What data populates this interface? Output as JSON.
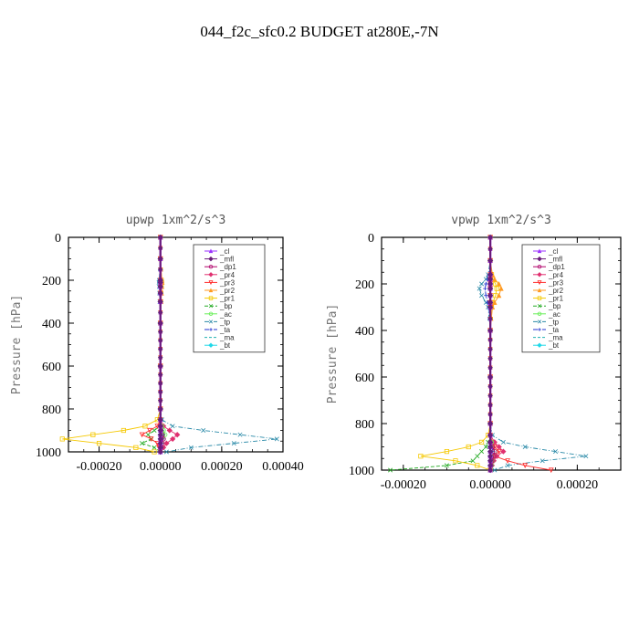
{
  "title": "044_f2c_sfc0.2  BUDGET at280E,-7N",
  "colors": {
    "_cl": "#9b30ff",
    "_mfl": "#6a1b7a",
    "_dp1": "#b0006a",
    "_pr4": "#e03070",
    "_pr3": "#ff2a2a",
    "_pr2": "#ff9a20",
    "_pr1": "#f5c800",
    "_bp": "#22aa22",
    "_ac": "#66ee55",
    "_tp": "#2a8aa8",
    "_ta": "#2030d0",
    "_ma": "#20b0b0",
    "_bt": "#20d8e8"
  },
  "chart_data": [
    {
      "type": "line",
      "title": "upwp   1xm^2/s^3",
      "ylabel": "Pressure [hPa]",
      "xlim": [
        -0.0003,
        0.0004
      ],
      "ylim": [
        1000,
        0
      ],
      "xticks": [
        "-0.00020",
        "0.00000",
        "0.00020",
        "0.00040"
      ],
      "xtick_values": [
        -0.0002,
        0,
        0.0002,
        0.0004
      ],
      "yticks": [
        "0",
        "200",
        "400",
        "600",
        "800",
        "1000"
      ],
      "ytick_values": [
        0,
        200,
        400,
        600,
        800,
        1000
      ],
      "legend": [
        "_cl",
        "_mfl",
        "_dp1",
        "_pr4",
        "_pr3",
        "_pr2",
        "_pr1",
        "_bp",
        "_ac",
        "_tp",
        "_ta",
        "_ma",
        "_bt"
      ],
      "legend_position": "top-right",
      "y": [
        0,
        100,
        200,
        210,
        230,
        260,
        300,
        400,
        600,
        800,
        850,
        880,
        900,
        920,
        940,
        960,
        980,
        1000
      ],
      "series": [
        {
          "name": "_cl",
          "x": [
            0,
            0,
            0,
            0,
            0,
            0,
            0,
            0,
            0,
            0,
            0,
            0,
            0,
            0,
            0,
            0,
            0,
            0
          ]
        },
        {
          "name": "_mfl",
          "x": [
            0,
            0,
            0,
            0,
            0,
            0,
            0,
            0,
            0,
            0,
            0,
            0,
            0,
            0,
            0,
            0,
            0,
            0
          ]
        },
        {
          "name": "_dp1",
          "x": [
            0,
            0,
            0,
            0,
            0,
            0,
            0,
            0,
            0,
            0,
            0,
            0,
            2e-06,
            6e-06,
            1e-05,
            5e-06,
            3e-06,
            0
          ]
        },
        {
          "name": "_pr4",
          "x": [
            0,
            0,
            0,
            0,
            0,
            0,
            0,
            0,
            0,
            0,
            0,
            1e-05,
            3e-05,
            5.5e-05,
            4e-05,
            2e-05,
            1e-05,
            0
          ]
        },
        {
          "name": "_pr3",
          "x": [
            0,
            0,
            0,
            0,
            0,
            0,
            0,
            0,
            0,
            0,
            0,
            -1e-05,
            -3.5e-05,
            -6e-05,
            -3e-05,
            -1e-05,
            -5e-06,
            0
          ]
        },
        {
          "name": "_pr2",
          "x": [
            0,
            0,
            5e-06,
            6e-06,
            5e-06,
            4e-06,
            2e-06,
            0,
            0,
            0,
            0,
            0,
            0,
            0,
            0,
            0,
            0,
            0
          ]
        },
        {
          "name": "_pr1",
          "x": [
            0,
            0,
            3e-06,
            4e-06,
            3e-06,
            2e-06,
            1e-06,
            0,
            0,
            0,
            -1e-05,
            -5e-05,
            -0.00012,
            -0.00022,
            -0.00032,
            -0.0002,
            -8e-05,
            -2e-05
          ]
        },
        {
          "name": "_bp",
          "x": [
            0,
            0,
            0,
            0,
            0,
            0,
            0,
            0,
            0,
            0,
            0,
            0,
            -2e-05,
            -4e-05,
            -3e-05,
            -6e-05,
            -2e-05,
            0
          ]
        },
        {
          "name": "_ac",
          "x": [
            0,
            0,
            0,
            0,
            0,
            0,
            0,
            0,
            0,
            0,
            0,
            5e-06,
            1e-05,
            1.5e-05,
            1e-05,
            5e-06,
            3e-06,
            0
          ]
        },
        {
          "name": "_tp",
          "x": [
            0,
            0,
            -4e-06,
            -5e-06,
            -4e-06,
            -3e-06,
            -2e-06,
            0,
            0,
            0,
            5e-06,
            4e-05,
            0.00014,
            0.00026,
            0.00038,
            0.00024,
            0.0001,
            2e-05
          ]
        },
        {
          "name": "_ta",
          "x": [
            0,
            0,
            -3e-06,
            -4e-06,
            -3e-06,
            -2e-06,
            -1e-06,
            0,
            0,
            0,
            0,
            3e-06,
            6e-06,
            1e-05,
            8e-06,
            4e-06,
            2e-06,
            0
          ]
        },
        {
          "name": "_ma",
          "x": [
            0,
            0,
            0,
            0,
            0,
            0,
            0,
            0,
            0,
            0,
            0,
            0,
            0,
            0,
            0,
            0,
            0,
            0
          ]
        },
        {
          "name": "_bt",
          "x": [
            0,
            0,
            0,
            0,
            0,
            0,
            0,
            0,
            0,
            0,
            0,
            0,
            0,
            0,
            0,
            0,
            0,
            0
          ]
        }
      ]
    },
    {
      "type": "line",
      "title": "vpwp   1xm^2/s^3",
      "ylabel": "Pressure [hPa]",
      "xlim": [
        -0.00025,
        0.0003
      ],
      "ylim": [
        1000,
        0
      ],
      "xticks": [
        "-0.00020",
        "0.00000",
        "0.00020"
      ],
      "xtick_values": [
        -0.0002,
        0,
        0.0002
      ],
      "yticks": [
        "0",
        "200",
        "400",
        "600",
        "800",
        "1000"
      ],
      "ytick_values": [
        0,
        200,
        400,
        600,
        800,
        1000
      ],
      "legend": [
        "_cl",
        "_mfl",
        "_dp1",
        "_pr4",
        "_pr3",
        "_pr2",
        "_pr1",
        "_bp",
        "_ac",
        "_tp",
        "_ta",
        "_ma",
        "_bt"
      ],
      "legend_position": "top-right",
      "y": [
        0,
        100,
        160,
        180,
        200,
        220,
        250,
        280,
        300,
        400,
        600,
        800,
        850,
        880,
        900,
        920,
        940,
        960,
        980,
        1000
      ],
      "series": [
        {
          "name": "_cl",
          "x": [
            0,
            0,
            0,
            0,
            0,
            0,
            0,
            0,
            0,
            0,
            0,
            0,
            0,
            0,
            0,
            0,
            0,
            0,
            0,
            0
          ]
        },
        {
          "name": "_mfl",
          "x": [
            0,
            0,
            0,
            0,
            0,
            0,
            0,
            0,
            0,
            0,
            0,
            0,
            0,
            0,
            0,
            0,
            0,
            0,
            0,
            0
          ]
        },
        {
          "name": "_dp1",
          "x": [
            0,
            0,
            0,
            0,
            0,
            0,
            0,
            0,
            0,
            0,
            0,
            0,
            0,
            0,
            5e-06,
            1e-05,
            8e-06,
            4e-06,
            2e-06,
            0
          ]
        },
        {
          "name": "_pr4",
          "x": [
            0,
            0,
            0,
            0,
            0,
            0,
            0,
            0,
            0,
            0,
            0,
            0,
            0,
            1e-05,
            2e-05,
            3e-05,
            1.5e-05,
            8e-06,
            4e-06,
            0
          ]
        },
        {
          "name": "_pr3",
          "x": [
            0,
            0,
            0,
            0,
            0,
            0,
            0,
            0,
            0,
            0,
            0,
            0,
            0,
            5e-06,
            1e-05,
            2e-05,
            1e-05,
            4e-05,
            8e-05,
            0.00014
          ]
        },
        {
          "name": "_pr2",
          "x": [
            0,
            0,
            5e-06,
            1e-05,
            2e-05,
            2.5e-05,
            2e-05,
            1e-05,
            5e-06,
            0,
            0,
            0,
            0,
            0,
            0,
            0,
            0,
            0,
            0,
            0
          ]
        },
        {
          "name": "_pr1",
          "x": [
            0,
            0,
            3e-06,
            6e-06,
            1.2e-05,
            1.5e-05,
            1.2e-05,
            6e-06,
            3e-06,
            0,
            0,
            0,
            -5e-06,
            -2e-05,
            -5e-05,
            -0.0001,
            -0.00016,
            -8e-05,
            -3e-05,
            0
          ]
        },
        {
          "name": "_bp",
          "x": [
            0,
            0,
            0,
            0,
            0,
            0,
            0,
            0,
            0,
            0,
            0,
            0,
            0,
            -5e-06,
            -1e-05,
            -2e-05,
            -3e-05,
            -4e-05,
            -0.0001,
            -0.00023
          ]
        },
        {
          "name": "_ac",
          "x": [
            0,
            0,
            0,
            0,
            0,
            0,
            0,
            0,
            0,
            0,
            0,
            0,
            0,
            3e-06,
            5e-06,
            1e-05,
            8e-06,
            5e-06,
            3e-06,
            0
          ]
        },
        {
          "name": "_tp",
          "x": [
            0,
            0,
            -5e-06,
            -1e-05,
            -2e-05,
            -2.5e-05,
            -2e-05,
            -1e-05,
            -5e-06,
            0,
            0,
            0,
            5e-06,
            3e-05,
            8e-05,
            0.00015,
            0.00022,
            0.00012,
            4e-05,
            1e-05
          ]
        },
        {
          "name": "_ta",
          "x": [
            0,
            0,
            -3e-06,
            -6e-06,
            -1e-05,
            -1.2e-05,
            -1e-05,
            -6e-06,
            -3e-06,
            0,
            0,
            0,
            0,
            2e-06,
            4e-06,
            6e-06,
            4e-06,
            2e-06,
            0,
            0
          ]
        },
        {
          "name": "_ma",
          "x": [
            0,
            0,
            0,
            0,
            0,
            0,
            0,
            0,
            0,
            0,
            0,
            0,
            0,
            0,
            0,
            0,
            0,
            0,
            0,
            0
          ]
        },
        {
          "name": "_bt",
          "x": [
            0,
            0,
            0,
            0,
            0,
            0,
            0,
            0,
            0,
            0,
            0,
            0,
            0,
            0,
            0,
            0,
            0,
            0,
            0,
            0
          ]
        }
      ]
    }
  ]
}
